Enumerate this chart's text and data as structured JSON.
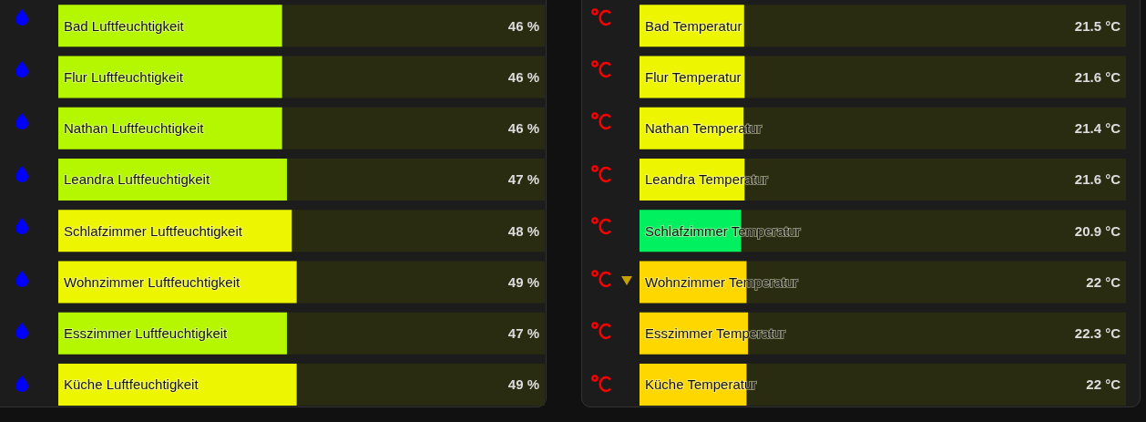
{
  "chart_data": [
    {
      "type": "bar",
      "orientation": "horizontal",
      "categories": [
        "Bad Luftfeuchtigkeit",
        "Flur Luftfeuchtigkeit",
        "Nathan Luftfeuchtigkeit",
        "Leandra Luftfeuchtigkeit",
        "Schlafzimmer Luftfeuchtigkeit",
        "Wohnzimmer Luftfeuchtigkeit",
        "Esszimmer Luftfeuchtigkeit",
        "Küche Luftfeuchtigkeit"
      ],
      "values": [
        46,
        46,
        46,
        47,
        48,
        49,
        47,
        49
      ],
      "colors": [
        "#b5f700",
        "#b5f700",
        "#b5f700",
        "#b5f700",
        "#eef500",
        "#eef500",
        "#b5f700",
        "#eef500"
      ],
      "value_labels": [
        "46 %",
        "46 %",
        "46 %",
        "47 %",
        "48 %",
        "49 %",
        "47 %",
        "49 %"
      ],
      "xlim": [
        0,
        100
      ],
      "tick_labels": "y"
    },
    {
      "type": "bar",
      "orientation": "horizontal",
      "categories": [
        "Bad Temperatur",
        "Flur Temperatur",
        "Nathan Temperatur",
        "Leandra Temperatur",
        "Schlafzimmer Temperatur",
        "Wohnzimmer Temperatur",
        "Esszimmer Temperatur",
        "Küche Temperatur"
      ],
      "values": [
        21.5,
        21.6,
        21.4,
        21.6,
        20.9,
        22,
        22.3,
        22
      ],
      "colors": [
        "#eef500",
        "#eef500",
        "#eef500",
        "#eef500",
        "#00f060",
        "#ffd700",
        "#ffd700",
        "#ffd700"
      ],
      "value_labels": [
        "21.5 °C",
        "21.6 °C",
        "21.4 °C",
        "21.6 °C",
        "20.9 °C",
        "22 °C",
        "22.3 °C",
        "22 °C"
      ],
      "xlim": [
        0,
        100
      ],
      "tick_labels": "y"
    }
  ]
}
